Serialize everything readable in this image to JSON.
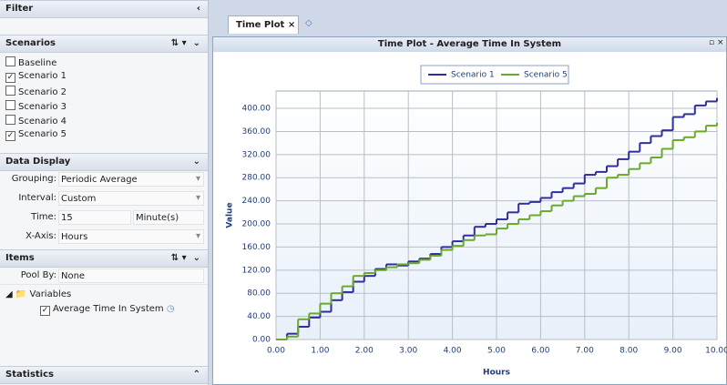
{
  "filter": {
    "title": "Filter",
    "scenarios": {
      "title": "Scenarios",
      "items": [
        {
          "label": "Baseline",
          "checked": false
        },
        {
          "label": "Scenario 1",
          "checked": true
        },
        {
          "label": "Scenario 2",
          "checked": false
        },
        {
          "label": "Scenario 3",
          "checked": false
        },
        {
          "label": "Scenario 4",
          "checked": false
        },
        {
          "label": "Scenario 5",
          "checked": true
        }
      ]
    },
    "data_display": {
      "title": "Data Display",
      "fields": [
        {
          "label": "Grouping:",
          "value": "Periodic Average"
        },
        {
          "label": "Interval:",
          "value": "Custom"
        },
        {
          "label": "Time:",
          "value": "15",
          "unit": "Minute(s)"
        },
        {
          "label": "X-Axis:",
          "value": "Hours"
        }
      ]
    },
    "items": {
      "title": "Items",
      "pool_label": "Pool By:",
      "pool_value": "None",
      "folder": "Variables",
      "variable": "Average Time In System",
      "variable_checked": true
    },
    "statistics": {
      "title": "Statistics"
    }
  },
  "tab": {
    "label": "Time Plot"
  },
  "chart_data": {
    "type": "line",
    "step": true,
    "title": "Time Plot - Average Time In System",
    "xlabel": "Hours",
    "ylabel": "Value",
    "x": [
      0,
      0.25,
      0.5,
      0.75,
      1,
      1.25,
      1.5,
      1.75,
      2,
      2.25,
      2.5,
      2.75,
      3,
      3.25,
      3.5,
      3.75,
      4,
      4.25,
      4.5,
      4.75,
      5,
      5.25,
      5.5,
      5.75,
      6,
      6.25,
      6.5,
      6.75,
      7,
      7.25,
      7.5,
      7.75,
      8,
      8.25,
      8.5,
      8.75,
      9,
      9.25,
      9.5,
      9.75,
      10
    ],
    "series": [
      {
        "name": "Scenario 1",
        "color": "#2e2e9e",
        "values": [
          0,
          10,
          22,
          38,
          48,
          68,
          82,
          100,
          110,
          122,
          130,
          128,
          135,
          140,
          148,
          160,
          170,
          180,
          195,
          200,
          208,
          220,
          235,
          238,
          245,
          255,
          262,
          270,
          285,
          290,
          300,
          312,
          325,
          340,
          352,
          362,
          385,
          390,
          405,
          412,
          418
        ]
      },
      {
        "name": "Scenario 5",
        "color": "#6aaa2a",
        "values": [
          0,
          5,
          35,
          45,
          62,
          80,
          92,
          110,
          115,
          120,
          125,
          130,
          132,
          138,
          145,
          155,
          162,
          172,
          180,
          182,
          192,
          200,
          208,
          215,
          222,
          232,
          240,
          248,
          252,
          262,
          280,
          285,
          295,
          305,
          315,
          330,
          345,
          350,
          360,
          370,
          375
        ]
      }
    ],
    "xlim": [
      0,
      10
    ],
    "ylim": [
      0,
      430
    ],
    "xticks": [
      {
        "value": 0,
        "label": "0.00"
      },
      {
        "value": 1,
        "label": "1.00"
      },
      {
        "value": 2,
        "label": "2.00"
      },
      {
        "value": 3,
        "label": "3.00"
      },
      {
        "value": 4,
        "label": "4.00"
      },
      {
        "value": 5,
        "label": "5.00"
      },
      {
        "value": 6,
        "label": "6.00"
      },
      {
        "value": 7,
        "label": "7.00"
      },
      {
        "value": 8,
        "label": "8.00"
      },
      {
        "value": 9,
        "label": "9.00"
      },
      {
        "value": 10,
        "label": "10.00"
      }
    ],
    "yticks": [
      {
        "value": 0,
        "label": "0.00"
      },
      {
        "value": 40,
        "label": "40.00"
      },
      {
        "value": 80,
        "label": "80.00"
      },
      {
        "value": 120,
        "label": "120.00"
      },
      {
        "value": 160,
        "label": "160.00"
      },
      {
        "value": 200,
        "label": "200.00"
      },
      {
        "value": 240,
        "label": "240.00"
      },
      {
        "value": 280,
        "label": "280.00"
      },
      {
        "value": 320,
        "label": "320.00"
      },
      {
        "value": 360,
        "label": "360.00"
      },
      {
        "value": 400,
        "label": "400.00"
      }
    ],
    "grid": true,
    "legend": "top"
  }
}
